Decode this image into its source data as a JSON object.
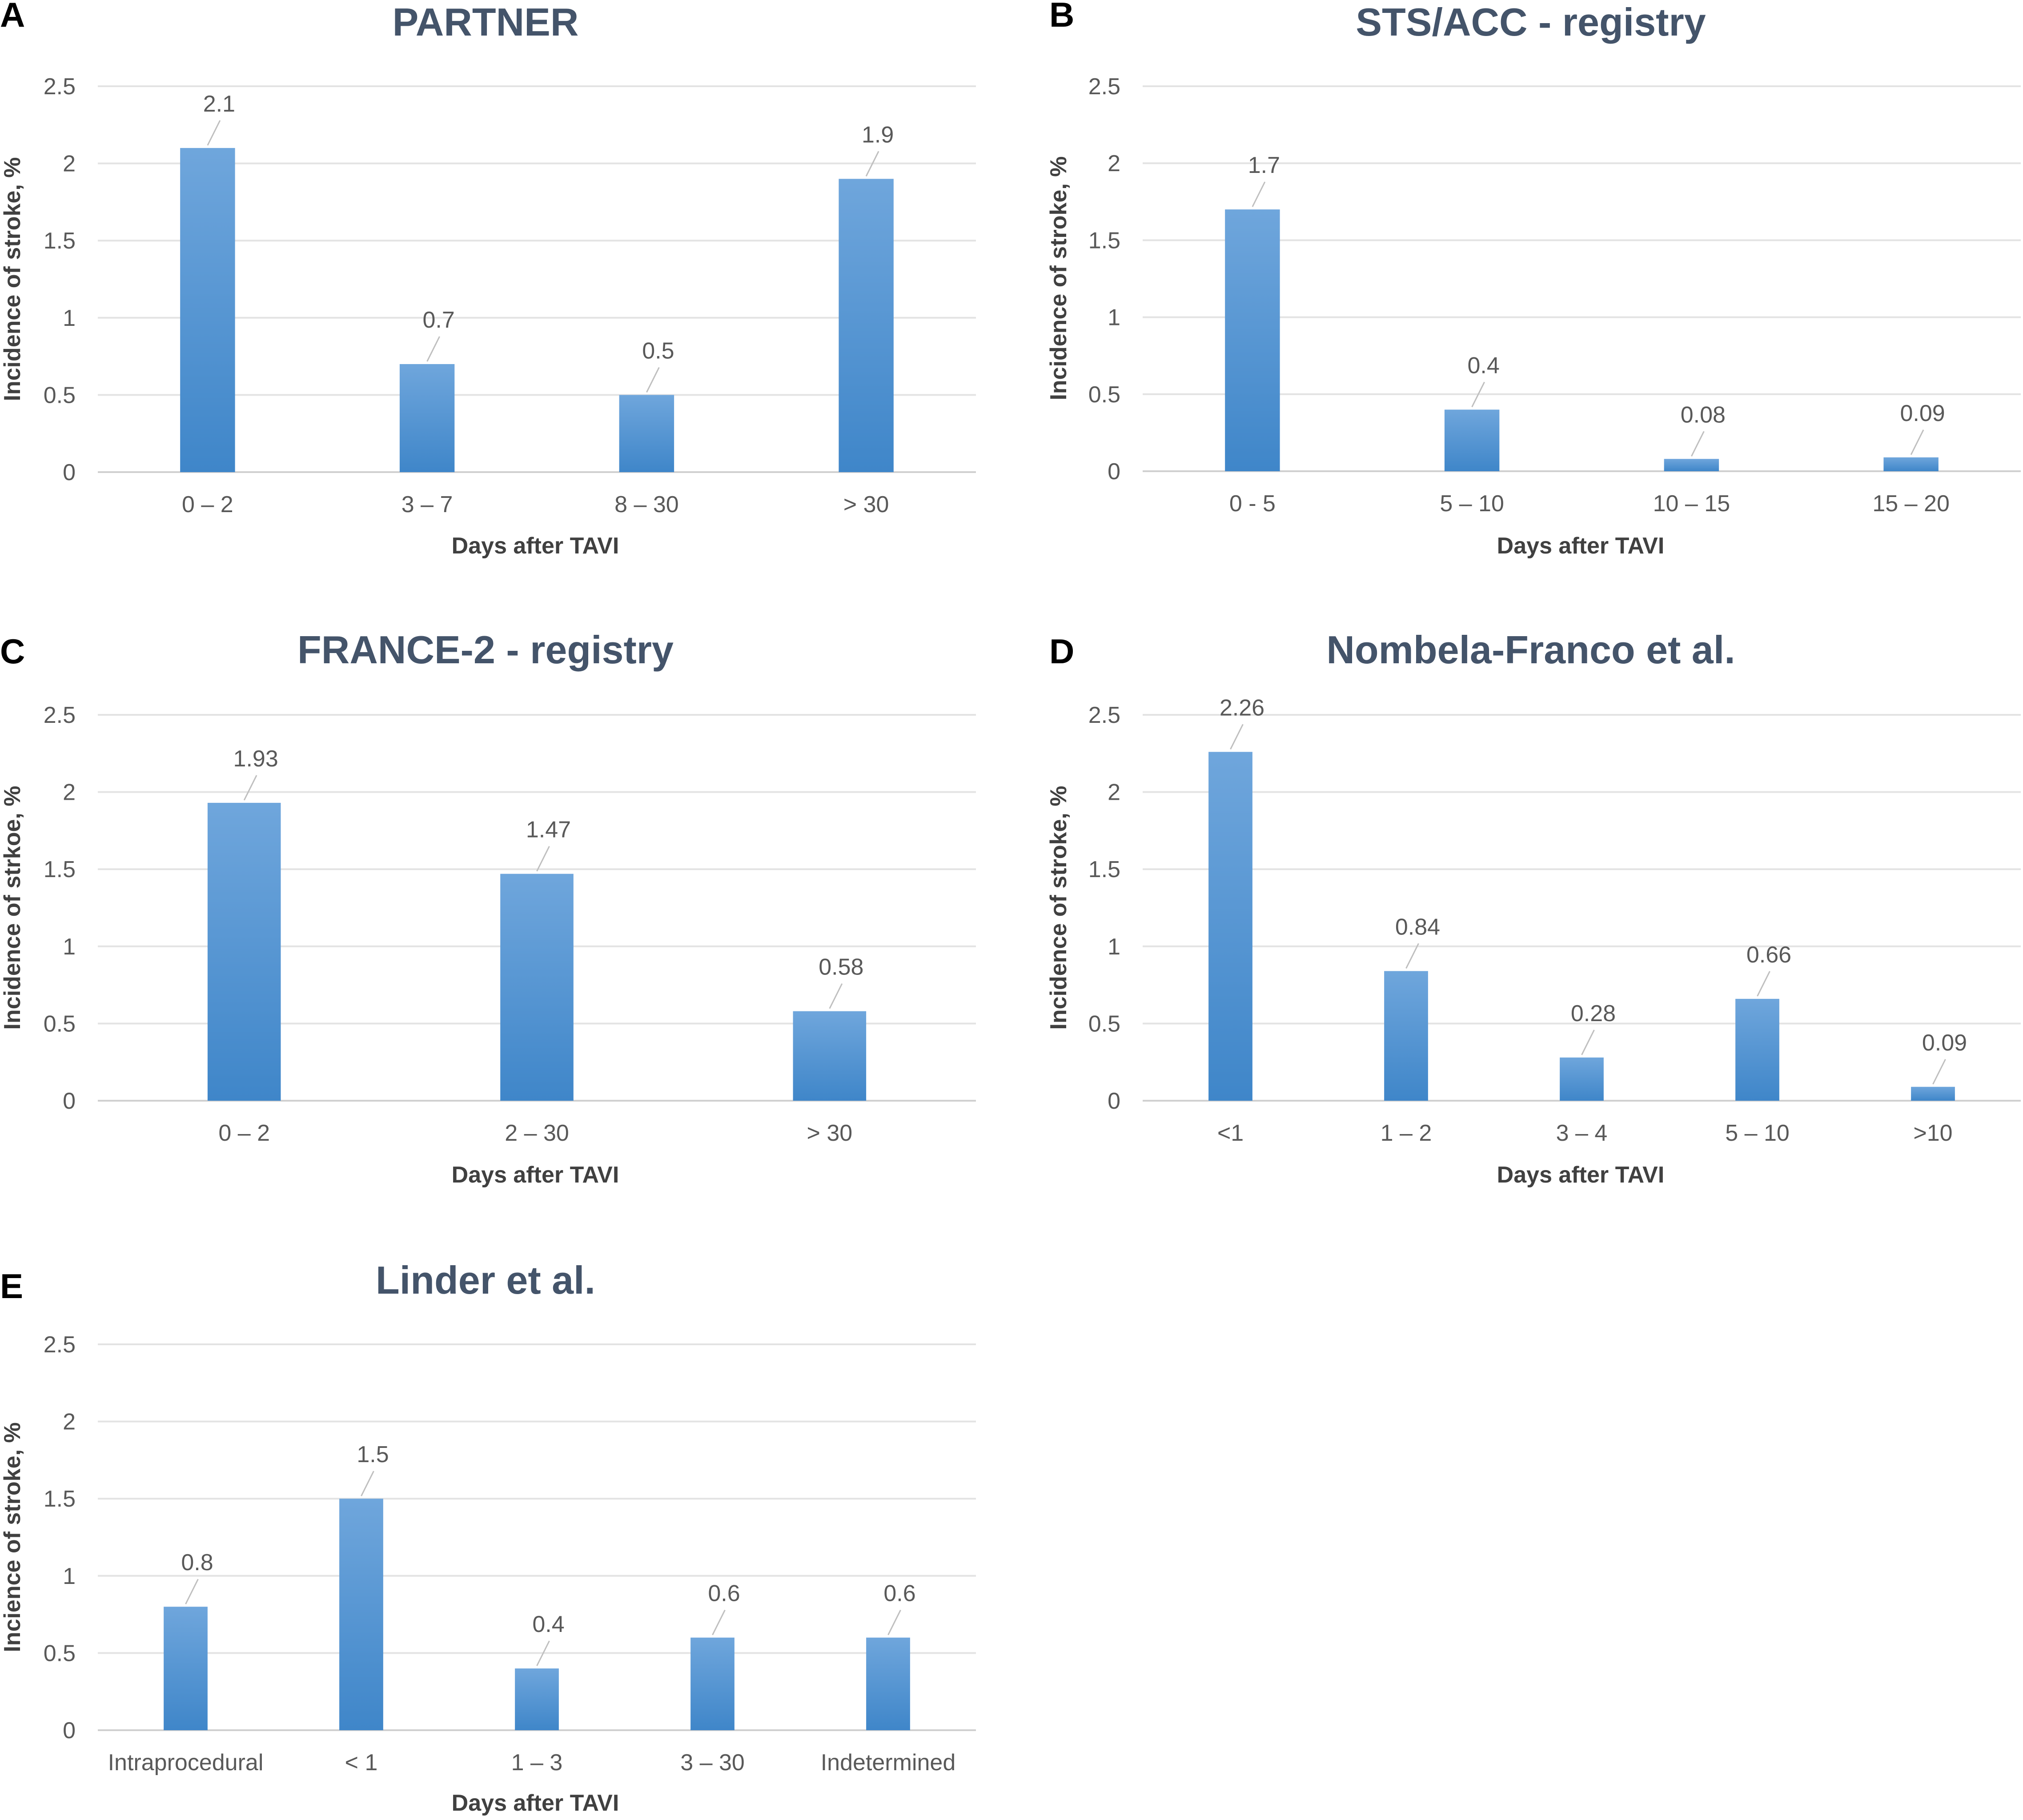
{
  "panels": [
    {
      "letter": "A",
      "chart_data": {
        "type": "bar",
        "title": "PARTNER",
        "categories": [
          "0 – 2",
          "3 – 7",
          "8 – 30",
          "> 30"
        ],
        "values": [
          2.1,
          0.7,
          0.5,
          1.9
        ],
        "value_labels": [
          "2.1",
          "0.7",
          "0.5",
          "1.9"
        ],
        "xlabel": "Days after TAVI",
        "ylabel": "Incidence of stroke, %",
        "ylim": [
          0,
          2.5
        ],
        "yticks": [
          "0",
          "0.5",
          "1",
          "1.5",
          "2",
          "2.5"
        ],
        "grid": true,
        "color": "#5b9bd5"
      }
    },
    {
      "letter": "B",
      "chart_data": {
        "type": "bar",
        "title": "STS/ACC - registry",
        "categories": [
          "0 - 5",
          "5 – 10",
          "10 – 15",
          "15 – 20"
        ],
        "values": [
          1.7,
          0.4,
          0.08,
          0.09
        ],
        "value_labels": [
          "1.7",
          "0.4",
          "0.08",
          "0.09"
        ],
        "xlabel": "Days after TAVI",
        "ylabel": "Incidence of stroke, %",
        "ylim": [
          0,
          2.5
        ],
        "yticks": [
          "0",
          "0.5",
          "1",
          "1.5",
          "2",
          "2.5"
        ],
        "grid": true,
        "color": "#5b9bd5"
      }
    },
    {
      "letter": "C",
      "chart_data": {
        "type": "bar",
        "title": "FRANCE-2 - registry",
        "categories": [
          "0 – 2",
          "2 – 30",
          "> 30"
        ],
        "values": [
          1.93,
          1.47,
          0.58
        ],
        "value_labels": [
          "1.93",
          "1.47",
          "0.58"
        ],
        "xlabel": "Days after TAVI",
        "ylabel": "Incidence of strkoe, %",
        "ylim": [
          0,
          2.5
        ],
        "yticks": [
          "0",
          "0.5",
          "1",
          "1.5",
          "2",
          "2.5"
        ],
        "grid": true,
        "color": "#5b9bd5"
      }
    },
    {
      "letter": "D",
      "chart_data": {
        "type": "bar",
        "title": "Nombela-Franco et al.",
        "categories": [
          "<1",
          "1 – 2",
          "3 – 4",
          "5 – 10",
          ">10"
        ],
        "values": [
          2.26,
          0.84,
          0.28,
          0.66,
          0.09
        ],
        "value_labels": [
          "2.26",
          "0.84",
          "0.28",
          "0.66",
          "0.09"
        ],
        "xlabel": "Days after TAVI",
        "ylabel": "Incidence of stroke, %",
        "ylim": [
          0,
          2.5
        ],
        "yticks": [
          "0",
          "0.5",
          "1",
          "1.5",
          "2",
          "2.5"
        ],
        "grid": true,
        "color": "#5b9bd5"
      }
    },
    {
      "letter": "E",
      "chart_data": {
        "type": "bar",
        "title": "Linder et al.",
        "categories": [
          "Intraprocedural",
          "< 1",
          "1 – 3",
          "3 – 30",
          "Indetermined"
        ],
        "values": [
          0.8,
          1.5,
          0.4,
          0.6,
          0.6
        ],
        "value_labels": [
          "0.8",
          "1.5",
          "0.4",
          "0.6",
          "0.6"
        ],
        "xlabel": "Days after TAVI",
        "ylabel": "Incience of stroke, %",
        "ylim": [
          0,
          2.5
        ],
        "yticks": [
          "0",
          "0.5",
          "1",
          "1.5",
          "2",
          "2.5"
        ],
        "grid": true,
        "color": "#5b9bd5"
      }
    }
  ]
}
